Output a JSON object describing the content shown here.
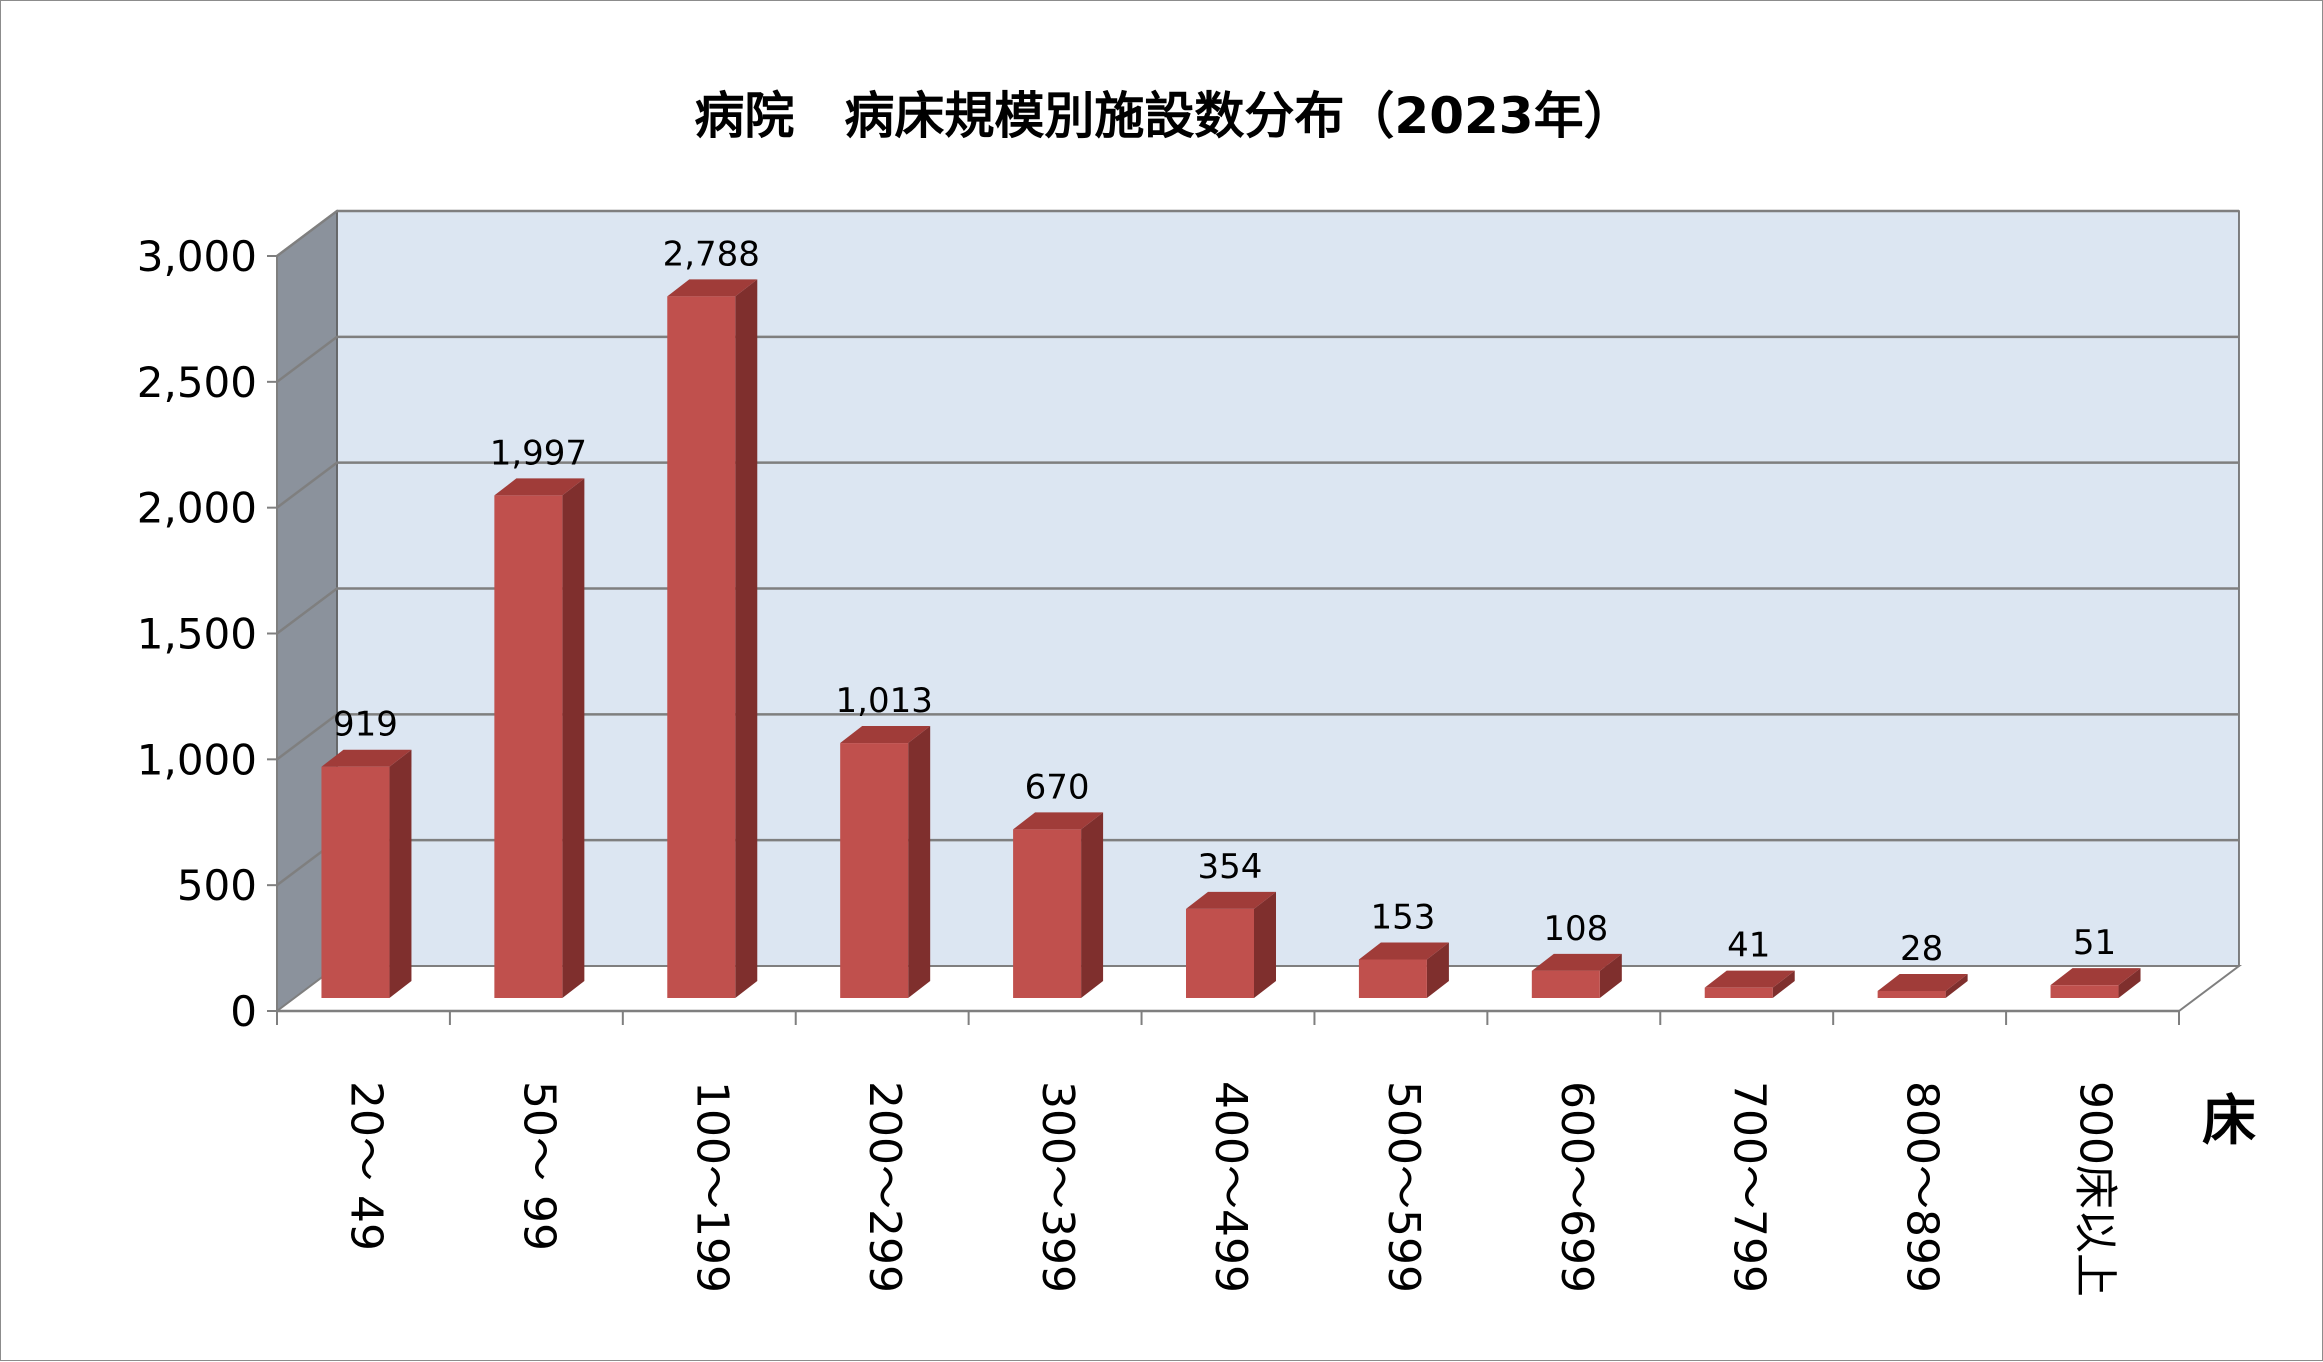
{
  "chart_data": {
    "type": "bar",
    "title": "病院　病床規模別施設数分布（2023年）",
    "xlabel": "床",
    "ylabel": "",
    "categories": [
      "20～ 49",
      "50～ 99",
      "100～199",
      "200～299",
      "300～399",
      "400～499",
      "500～599",
      "600～699",
      "700～799",
      "800～899",
      "900床以上"
    ],
    "values": [
      919,
      1997,
      2788,
      1013,
      670,
      354,
      153,
      108,
      41,
      28,
      51
    ],
    "data_labels": [
      "919",
      "1,997",
      "2,788",
      "1,013",
      "670",
      "354",
      "153",
      "108",
      "41",
      "28",
      "51"
    ],
    "ylim": [
      0,
      3000
    ],
    "yticks": [
      "0",
      "500",
      "1,000",
      "1,500",
      "2,000",
      "2,500",
      "3,000"
    ],
    "grid": true,
    "style": "3d-column",
    "colors": {
      "bar_front": "#c0504d",
      "bar_side": "#7f2f2d",
      "bar_top": "#a03c39",
      "plot_back": "#dce6f2",
      "left_wall": "#8b929c",
      "gridline": "#7f7f7f"
    }
  }
}
